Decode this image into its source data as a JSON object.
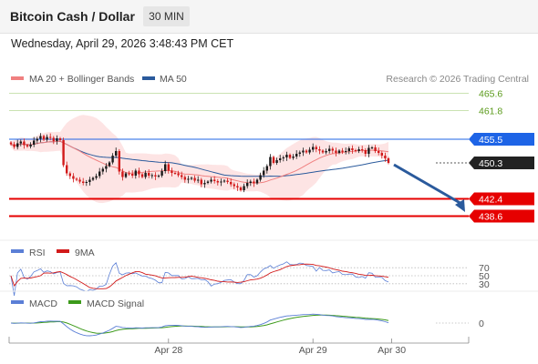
{
  "header": {
    "title": "Bitcoin Cash / Dollar",
    "timeframe": "30 MIN",
    "datetime": "Wednesday, April 29, 2026 3:48:43 PM CET"
  },
  "legend": {
    "ma20": "MA 20 + Bollinger Bands",
    "ma50": "MA 50",
    "credit": "Research © 2026 Trading Central",
    "rsi": "RSI",
    "rsi_ma": "9MA",
    "macd": "MACD",
    "macd_signal": "MACD Signal"
  },
  "colors": {
    "ma20": "#f08080",
    "band_fill": "#fde4e4",
    "ma50": "#2a5a9c",
    "candle_up": "#1a1a1a",
    "candle_down": "#d21a1a",
    "resistance_green": "#5a9a1a",
    "support_red": "#e60000",
    "pivot_blue": "#1e64e6",
    "current_black": "#222222",
    "arrow": "#2a5a9c",
    "rsi_line": "#5b7fd6",
    "rsi_ma_line": "#d21a1a",
    "macd_line": "#5b7fd6",
    "macd_signal_line": "#3c9a1a"
  },
  "chart_data": [
    {
      "type": "candlestick",
      "ylim": [
        434.5,
        468.5
      ],
      "levels": [
        {
          "value": 465.6,
          "label": "465.6",
          "kind": "resistance"
        },
        {
          "value": 461.8,
          "label": "461.8",
          "kind": "resistance"
        },
        {
          "value": 455.5,
          "label": "455.5",
          "kind": "pivot"
        },
        {
          "value": 450.3,
          "label": "450.3",
          "kind": "current"
        },
        {
          "value": 442.4,
          "label": "442.4",
          "kind": "support"
        },
        {
          "value": 438.6,
          "label": "438.6",
          "kind": "support"
        }
      ],
      "x_ticks": [
        "Apr 28",
        "Apr 29",
        "Apr 30"
      ],
      "x_tick_index": [
        48,
        92,
        116
      ],
      "x_max_index": 126,
      "close": [
        454.4,
        453.8,
        454.6,
        455.0,
        454.2,
        453.9,
        454.3,
        455.2,
        455.6,
        456.2,
        455.4,
        456.0,
        455.8,
        455.1,
        455.7,
        455.3,
        449.8,
        448.0,
        447.4,
        446.8,
        446.6,
        446.2,
        445.9,
        446.1,
        446.6,
        447.0,
        447.4,
        448.4,
        449.0,
        449.6,
        450.4,
        451.9,
        452.9,
        448.4,
        447.2,
        448.0,
        447.9,
        447.5,
        448.6,
        447.8,
        447.2,
        448.1,
        447.5,
        447.6,
        447.3,
        447.5,
        448.5,
        450.0,
        448.6,
        448.1,
        448.0,
        447.6,
        447.2,
        446.6,
        446.8,
        447.0,
        446.4,
        446.6,
        445.6,
        445.9,
        446.2,
        446.6,
        446.3,
        446.0,
        446.2,
        446.4,
        446.1,
        445.6,
        445.2,
        444.9,
        444.3,
        445.2,
        445.9,
        446.2,
        445.8,
        446.6,
        447.6,
        448.6,
        449.6,
        451.6,
        450.3,
        450.9,
        451.3,
        451.5,
        452.1,
        451.4,
        451.7,
        452.3,
        452.6,
        453.0,
        452.6,
        453.2,
        453.8,
        453.3,
        453.0,
        452.6,
        452.9,
        453.4,
        453.0,
        452.5,
        453.0,
        452.7,
        452.9,
        453.5,
        453.1,
        452.9,
        453.3,
        453.1,
        452.3,
        453.6,
        453.7,
        452.9,
        452.5,
        451.9,
        451.3,
        450.3
      ],
      "rsi": {
        "levels": [
          70,
          50,
          30
        ],
        "ylim": [
          25,
          75
        ]
      },
      "macd": {
        "levels": [
          0
        ]
      }
    }
  ]
}
